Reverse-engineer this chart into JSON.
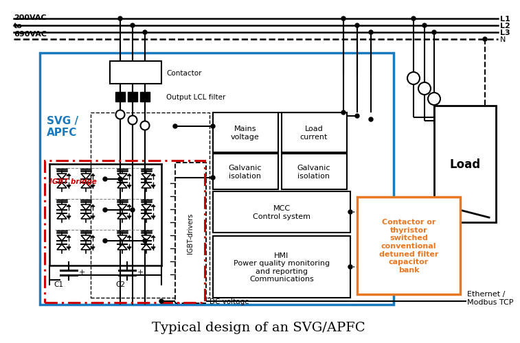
{
  "title": "Typical design of an SVG/APFC",
  "background_color": "#ffffff",
  "svg_color": "#1a7abf",
  "igbt_color": "#cc0000",
  "orange_color": "#e87722",
  "voltage_label": "200VAC\nto\n690VAC",
  "ethernet_label": "Ethernet /\nModbus TCP",
  "L_labels": [
    "L1",
    "L2",
    "L3",
    "N"
  ],
  "svg_label": "SVG /\nAPFC",
  "igbt_label": "IGBT bridge",
  "orange_text": "Contactor or\nthyristor\nswitched\nconventional\ndetuned filter\ncapacitor\nbank",
  "mains_text": "Mains\nvoltage",
  "load_current_text": "Load\ncurrent",
  "galvanic_text": "Galvanic\nisolation",
  "mcc_text": "MCC\nControl system",
  "hmi_text": "HMI\nPower quality monitoring\nand reporting\nCommunications",
  "contactor_text": "Contactor",
  "lcl_text": "Output LCL filter",
  "dc_text": "DC voltage",
  "igbt_drivers_text": "IGBT-drivers",
  "load_text": "Load"
}
